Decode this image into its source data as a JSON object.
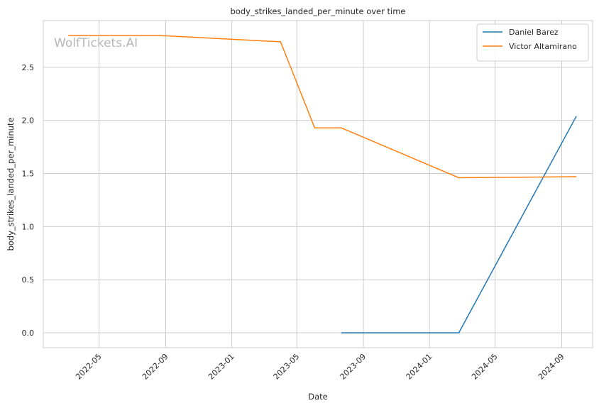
{
  "watermark": "WolfTickets.AI",
  "chart_data": {
    "type": "line",
    "title": "body_strikes_landed_per_minute over time",
    "xlabel": "Date",
    "ylabel": "body_strikes_landed_per_minute",
    "x_ticks": [
      "2022-05",
      "2022-09",
      "2023-01",
      "2023-05",
      "2023-09",
      "2024-01",
      "2024-05",
      "2024-09"
    ],
    "y_ticks": [
      "0.0",
      "0.5",
      "1.0",
      "1.5",
      "2.0",
      "2.5"
    ],
    "ylim": [
      -0.14,
      2.94
    ],
    "xlim": [
      "2022-01-18",
      "2024-10-28"
    ],
    "grid": true,
    "legend_position": "top-right",
    "series": [
      {
        "name": "Daniel Barez",
        "color": "#1f77b4",
        "points": [
          {
            "x": "2023-07-22",
            "y": 0.0
          },
          {
            "x": "2024-02-24",
            "y": 0.0
          },
          {
            "x": "2024-09-28",
            "y": 2.04
          }
        ]
      },
      {
        "name": "Victor Altamirano",
        "color": "#ff7f0e",
        "points": [
          {
            "x": "2022-03-05",
            "y": 2.8
          },
          {
            "x": "2022-08-20",
            "y": 2.8
          },
          {
            "x": "2023-04-01",
            "y": 2.74
          },
          {
            "x": "2023-06-03",
            "y": 1.93
          },
          {
            "x": "2023-07-22",
            "y": 1.93
          },
          {
            "x": "2024-02-24",
            "y": 1.46
          },
          {
            "x": "2024-09-28",
            "y": 1.47
          }
        ]
      }
    ]
  }
}
